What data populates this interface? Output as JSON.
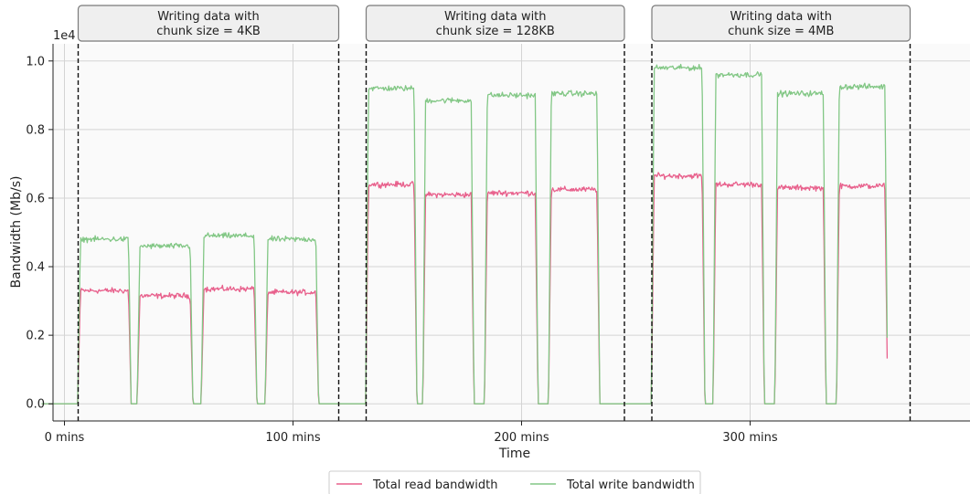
{
  "chart_data": {
    "type": "line",
    "title": "",
    "xlabel": "Time",
    "ylabel": "Bandwidth (Mb/s)",
    "y_multiplier_label": "1e4",
    "xlim": [
      0,
      370
    ],
    "ylim": [
      -0.05,
      1.05
    ],
    "y_ticks": [
      0.0,
      0.2,
      0.4,
      0.6,
      0.8,
      1.0
    ],
    "y_tick_labels": [
      "0.0",
      "0.2",
      "0.4",
      "0.6",
      "0.8",
      "1.0"
    ],
    "x_ticks": [
      5,
      105,
      205,
      305
    ],
    "x_tick_labels": [
      "0 mins",
      "100 mins",
      "200 mins",
      "300 mins"
    ],
    "grid": true,
    "legend_position": "bottom-center",
    "phase_boundaries": [
      11,
      125,
      137,
      250,
      262,
      375
    ],
    "phases": [
      {
        "label_line1": "Writing data with",
        "label_line2": "chunk size = 4KB",
        "start": 11,
        "end": 125
      },
      {
        "label_line1": "Writing data with",
        "label_line2": "chunk size = 128KB",
        "start": 137,
        "end": 250
      },
      {
        "label_line1": "Writing data with",
        "label_line2": "chunk size = 4MB",
        "start": 262,
        "end": 375
      }
    ],
    "series": [
      {
        "name": "Total read bandwidth",
        "color": "#e8608c",
        "noise": 0.008
      },
      {
        "name": "Total write bandwidth",
        "color": "#82c785",
        "noise": 0.008
      }
    ],
    "pulses": [
      {
        "start": 12,
        "end": 33,
        "read": 0.33,
        "write": 0.48
      },
      {
        "start": 38,
        "end": 60,
        "read": 0.315,
        "write": 0.46
      },
      {
        "start": 66,
        "end": 88,
        "read": 0.335,
        "write": 0.49
      },
      {
        "start": 94,
        "end": 115,
        "read": 0.325,
        "write": 0.48
      },
      {
        "start": 138,
        "end": 158,
        "read": 0.64,
        "write": 0.92
      },
      {
        "start": 163,
        "end": 183,
        "read": 0.61,
        "write": 0.885
      },
      {
        "start": 190,
        "end": 211,
        "read": 0.615,
        "write": 0.9
      },
      {
        "start": 218,
        "end": 238,
        "read": 0.625,
        "write": 0.905
      },
      {
        "start": 263,
        "end": 284,
        "read": 0.665,
        "write": 0.98
      },
      {
        "start": 290,
        "end": 310,
        "read": 0.64,
        "write": 0.96
      },
      {
        "start": 317,
        "end": 337,
        "read": 0.63,
        "write": 0.905
      },
      {
        "start": 344,
        "end": 364,
        "read": 0.635,
        "write": 0.925
      }
    ],
    "series_span": [
      -5,
      365
    ]
  }
}
